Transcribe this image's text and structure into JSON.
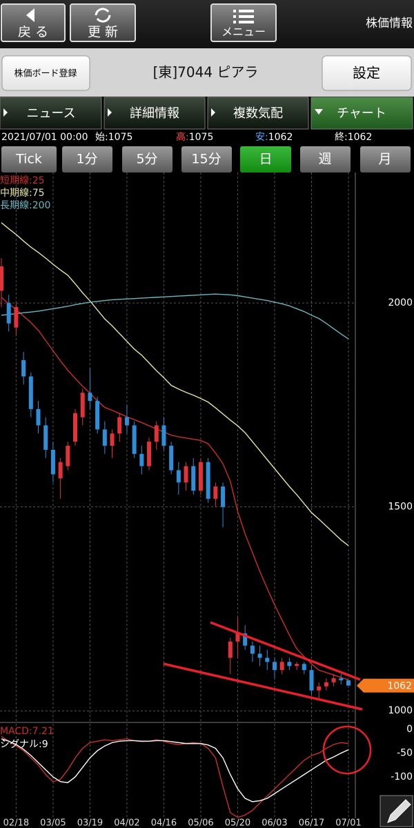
{
  "ui": {
    "back": "戻 る",
    "refresh": "更 新",
    "menu": "メニュー",
    "screen_title": "株価情報",
    "board_register": "株価ボード登録",
    "symbol": "[東]7044 ピアラ",
    "settings": "設定",
    "tabs": [
      "ニュース",
      "詳細情報",
      "複数気配",
      "チャート"
    ],
    "info": {
      "date": "2021/07/01 00:00",
      "open_label": "始:",
      "high_label": "高:",
      "low_label": "安:",
      "close_label": "終:"
    },
    "periods": [
      "Tick",
      "1分",
      "5分",
      "15分",
      "日",
      "週",
      "月"
    ]
  },
  "chart_data": [
    {
      "type": "candlestick",
      "categories": [
        null,
        null,
        "02/18",
        null,
        null,
        null,
        null,
        "03/05",
        null,
        null,
        null,
        null,
        "03/19",
        null,
        null,
        null,
        null,
        "04/02",
        null,
        null,
        null,
        null,
        "04/16",
        null,
        null,
        null,
        null,
        "05/06",
        null,
        null,
        null,
        null,
        "05/20",
        null,
        null,
        null,
        null,
        "06/03",
        null,
        null,
        null,
        null,
        "06/17",
        null,
        null,
        null,
        null,
        "07/01"
      ],
      "open": [
        2030,
        2000,
        1940,
        1860,
        1820,
        1740,
        1700,
        1640,
        1570,
        1600,
        1660,
        1720,
        1780,
        1760,
        1690,
        1650,
        1680,
        1720,
        1700,
        1630,
        1600,
        1660,
        1700,
        1650,
        1590,
        1560,
        1600,
        1540,
        1610,
        1520,
        1550,
        1130,
        1170,
        1190,
        1160,
        1140,
        1130,
        1120,
        1100,
        1120,
        1110,
        1115,
        1100,
        1050,
        1060,
        1070,
        1080,
        1075
      ],
      "high": [
        2110,
        2020,
        2000,
        1880,
        1830,
        1760,
        1720,
        1660,
        1620,
        1660,
        1740,
        1790,
        1840,
        1770,
        1710,
        1690,
        1730,
        1750,
        1710,
        1650,
        1670,
        1710,
        1720,
        1660,
        1610,
        1610,
        1620,
        1620,
        1620,
        1560,
        1560,
        1180,
        1230,
        1210,
        1170,
        1160,
        1150,
        1130,
        1130,
        1130,
        1120,
        1120,
        1110,
        1070,
        1080,
        1090,
        1090,
        1075
      ],
      "low": [
        1990,
        1930,
        1920,
        1800,
        1720,
        1680,
        1620,
        1560,
        1520,
        1590,
        1650,
        1700,
        1740,
        1680,
        1630,
        1620,
        1660,
        1680,
        1620,
        1580,
        1590,
        1640,
        1640,
        1580,
        1530,
        1540,
        1530,
        1530,
        1510,
        1500,
        1450,
        1090,
        1130,
        1150,
        1120,
        1110,
        1100,
        1080,
        1090,
        1100,
        1100,
        1090,
        1040,
        1030,
        1050,
        1060,
        1065,
        1062
      ],
      "close": [
        2090,
        1950,
        1990,
        1820,
        1740,
        1700,
        1640,
        1580,
        1610,
        1650,
        1730,
        1780,
        1760,
        1690,
        1650,
        1680,
        1720,
        1700,
        1630,
        1600,
        1660,
        1700,
        1650,
        1590,
        1560,
        1600,
        1540,
        1610,
        1520,
        1550,
        1500,
        1170,
        1190,
        1160,
        1140,
        1130,
        1120,
        1100,
        1120,
        1110,
        1115,
        1100,
        1050,
        1060,
        1070,
        1080,
        1075,
        1062
      ],
      "up_color": "#e2333b",
      "down_color": "#2e8fd8",
      "series": [
        {
          "name": "短期線:25",
          "color": "#c9302c",
          "values": [
            2014,
            1998,
            1984,
            1968,
            1952,
            1933,
            1908,
            1883,
            1858,
            1835,
            1815,
            1796,
            1779,
            1760,
            1744,
            1737,
            1729,
            1721,
            1714,
            1707,
            1699,
            1691,
            1684,
            1676,
            1672,
            1669,
            1666,
            1663,
            1655,
            1632,
            1606,
            1563,
            1489,
            1434,
            1388,
            1342,
            1300,
            1260,
            1223,
            1186,
            1152,
            1133,
            1115,
            1100,
            1094,
            1088,
            1082,
            1076
          ]
        },
        {
          "name": "中期線:75",
          "color": "#e6e49e",
          "values": [
            2197,
            2182,
            2168,
            2152,
            2137,
            2124,
            2110,
            2095,
            2081,
            2068,
            2047,
            2025,
            2005,
            1983,
            1961,
            1944,
            1925,
            1906,
            1887,
            1872,
            1853,
            1834,
            1817,
            1798,
            1789,
            1781,
            1774,
            1766,
            1757,
            1743,
            1728,
            1713,
            1699,
            1682,
            1660,
            1638,
            1616,
            1594,
            1572,
            1550,
            1530,
            1508,
            1486,
            1470,
            1453,
            1436,
            1419,
            1405
          ]
        },
        {
          "name": "長期線:200",
          "color": "#6cb6bf",
          "values": [
            1970,
            1972,
            1974,
            1976,
            1978,
            1980,
            1983,
            1986,
            1989,
            1992,
            1996,
            1999,
            2002,
            2004,
            2006,
            2008,
            2009,
            2010,
            2011,
            2012,
            2013,
            2014,
            2015,
            2016,
            2017,
            2018,
            2019,
            2020,
            2021,
            2022,
            2021,
            2020,
            2018,
            2015,
            2012,
            2009,
            2006,
            2002,
            1998,
            1993,
            1986,
            1979,
            1970,
            1962,
            1950,
            1937,
            1924,
            1912
          ]
        }
      ],
      "ylim": [
        975,
        2320
      ],
      "yticks": [
        2000,
        1500,
        1000
      ],
      "grid": true,
      "last_price_color": "#f47a1f"
    },
    {
      "type": "line",
      "series": [
        {
          "name": "MACD:7.21",
          "color": "#c9302c",
          "values": [
            -15,
            -25,
            -35,
            -45,
            -60,
            -75,
            -95,
            -110,
            -105,
            -85,
            -60,
            -40,
            -28,
            -25,
            -22,
            -24,
            -22,
            -20,
            -24,
            -26,
            -25,
            -22,
            -25,
            -30,
            -32,
            -30,
            -28,
            -30,
            -40,
            -60,
            -120,
            -175,
            -185,
            -180,
            -170,
            -155,
            -140,
            -125,
            -110,
            -95,
            -80,
            -65,
            -55,
            -50,
            -40,
            -32,
            -28,
            -30
          ]
        },
        {
          "name": "シグナル:9",
          "color": "#ffffff",
          "values": [
            -20,
            -25,
            -32,
            -42,
            -55,
            -70,
            -85,
            -100,
            -110,
            -112,
            -100,
            -80,
            -60,
            -45,
            -35,
            -28,
            -25,
            -24,
            -24,
            -25,
            -25,
            -24,
            -24,
            -26,
            -28,
            -30,
            -30,
            -30,
            -33,
            -40,
            -60,
            -95,
            -125,
            -145,
            -152,
            -150,
            -145,
            -135,
            -125,
            -115,
            -105,
            -95,
            -85,
            -75,
            -65,
            -58,
            -50,
            -43
          ]
        }
      ],
      "ylim": [
        -200,
        10
      ],
      "yticks": [
        0,
        -50,
        -100,
        -150
      ]
    }
  ]
}
